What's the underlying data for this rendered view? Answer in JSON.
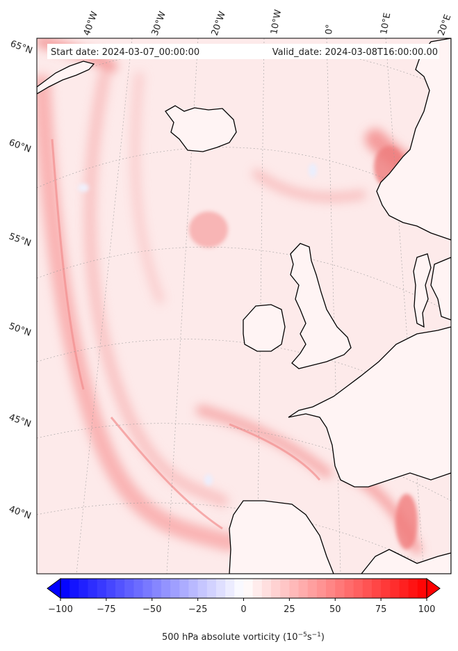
{
  "map": {
    "start_date_label": "Start date: 2024-03-07_00:00:00",
    "valid_date_label": "Valid_date: 2024-03-08T16:00:00.00",
    "lon_labels": [
      "40°W",
      "30°W",
      "20°W",
      "10°W",
      "0°",
      "10°E",
      "20°E"
    ],
    "lat_labels": [
      "65°N",
      "60°N",
      "55°N",
      "50°N",
      "45°N",
      "40°N"
    ],
    "land_color": "#ffffff",
    "coast_color": "#000000"
  },
  "colorbar": {
    "ticks": [
      "−100",
      "−75",
      "−50",
      "−25",
      "0",
      "25",
      "50",
      "75",
      "100"
    ],
    "tick_values": [
      -100,
      -75,
      -50,
      -25,
      0,
      25,
      50,
      75,
      100
    ],
    "min": -100,
    "max": 100,
    "step": 5,
    "label_main": "500 hPa absolute vorticity (10",
    "label_exp1": "−5",
    "label_mid": "s",
    "label_exp2": "−1",
    "label_end": ")",
    "neg_color": "#0000ff",
    "pos_color": "#ff0000",
    "extend": "both"
  }
}
